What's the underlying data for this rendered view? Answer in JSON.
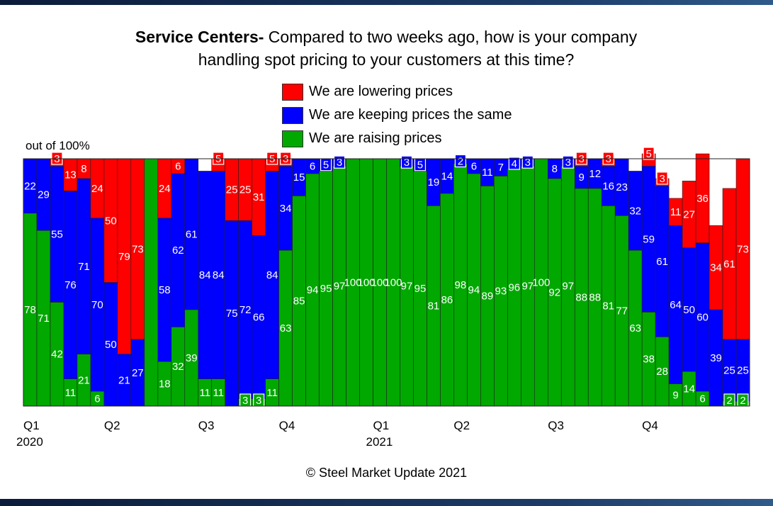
{
  "title": {
    "bold": "Service Centers-",
    "rest_line1": " Compared to two weeks ago, how is your company",
    "line2": "handling spot pricing to your customers at this time?"
  },
  "out_of_label": "out of 100%",
  "copyright": "© Steel Market Update 2021",
  "colors": {
    "lowering": "#ff0000",
    "same": "#0000ff",
    "raising": "#00a800"
  },
  "chart_data": {
    "type": "bar",
    "stacked": true,
    "title": "Service Centers- Compared to two weeks ago, how is your company handling spot pricing to your customers at this time?",
    "ylabel": "out of 100%",
    "ylim": [
      0,
      100
    ],
    "legend": "top-center",
    "x_tick_labels": [
      {
        "index": 0,
        "label": "Q1",
        "year": "2020"
      },
      {
        "index": 6,
        "label": "Q2"
      },
      {
        "index": 13,
        "label": "Q3"
      },
      {
        "index": 19,
        "label": "Q4"
      },
      {
        "index": 26,
        "label": "Q1",
        "year": "2021"
      },
      {
        "index": 32,
        "label": "Q2"
      },
      {
        "index": 39,
        "label": "Q3"
      },
      {
        "index": 46,
        "label": "Q4"
      }
    ],
    "series": [
      {
        "name": "We are lowering prices",
        "key": "lowering",
        "values": [
          0,
          0,
          3,
          13,
          8,
          24,
          50,
          79,
          73,
          0,
          24,
          6,
          0,
          0,
          5,
          25,
          25,
          31,
          5,
          3,
          0,
          0,
          0,
          0,
          0,
          0,
          0,
          0,
          0,
          0,
          0,
          0,
          0,
          0,
          0,
          0,
          0,
          0,
          0,
          0,
          0,
          3,
          0,
          3,
          0,
          0,
          5,
          3,
          11,
          27,
          36,
          34,
          61,
          73
        ],
        "labels": [
          "",
          "",
          "3",
          "13",
          "8",
          "24",
          "50",
          "79",
          "73",
          "",
          "24",
          "6",
          "",
          "",
          "5",
          "25",
          "25",
          "31",
          "5",
          "3",
          "",
          "",
          "",
          "",
          "",
          "",
          "",
          "",
          "",
          "",
          "",
          "",
          "",
          "",
          "",
          "",
          "",
          "",
          "",
          "",
          "",
          "3",
          "",
          "3",
          "",
          "",
          "5",
          "3",
          "11",
          "27",
          "36",
          "34",
          "61",
          "73"
        ]
      },
      {
        "name": "We are keeping prices the same",
        "key": "same",
        "values": [
          22,
          29,
          55,
          76,
          71,
          70,
          50,
          21,
          27,
          0,
          58,
          62,
          61,
          84,
          84,
          75,
          72,
          66,
          84,
          34,
          15,
          6,
          5,
          3,
          0,
          0,
          0,
          0,
          3,
          5,
          19,
          14,
          2,
          6,
          11,
          7,
          4,
          3,
          0,
          8,
          3,
          9,
          12,
          16,
          23,
          32,
          59,
          61,
          64,
          50,
          60,
          39,
          25,
          25
        ],
        "labels": [
          "22",
          "29",
          "55",
          "76",
          "71",
          "70",
          "50",
          "21",
          "27",
          "",
          "58",
          "62",
          "61",
          "84",
          "84",
          "75",
          "72",
          "66",
          "84",
          "34",
          "15",
          "6",
          "5",
          "3",
          "",
          "",
          "",
          "",
          "3",
          "5",
          "19",
          "14",
          "2",
          "6",
          "11",
          "7",
          "4",
          "3",
          "",
          "8",
          "3",
          "9",
          "12",
          "16",
          "23",
          "32",
          "59",
          "61",
          "64",
          "50",
          "60",
          "39",
          "25",
          "25"
        ]
      },
      {
        "name": "We are raising prices",
        "key": "raising",
        "values": [
          78,
          71,
          42,
          11,
          21,
          6,
          0,
          0,
          0,
          100,
          18,
          32,
          39,
          11,
          11,
          0,
          3,
          3,
          11,
          63,
          85,
          94,
          95,
          97,
          100,
          100,
          100,
          100,
          97,
          95,
          81,
          86,
          98,
          94,
          89,
          93,
          96,
          97,
          100,
          92,
          97,
          88,
          88,
          81,
          77,
          63,
          38,
          28,
          9,
          14,
          6,
          0,
          2,
          2
        ],
        "labels": [
          "78",
          "71",
          "42",
          "11",
          "21",
          "6",
          "",
          "",
          "",
          "",
          "18",
          "32",
          "39",
          "11",
          "11",
          "",
          "3",
          "3",
          "11",
          "63",
          "85",
          "94",
          "95",
          "97",
          "100",
          "100",
          "100",
          "100",
          "97",
          "95",
          "81",
          "86",
          "98",
          "94",
          "89",
          "93",
          "96",
          "97",
          "100",
          "92",
          "97",
          "88",
          "88",
          "81",
          "77",
          "63",
          "38",
          "28",
          "9",
          "14",
          "6",
          "",
          "2",
          "2"
        ]
      }
    ]
  }
}
